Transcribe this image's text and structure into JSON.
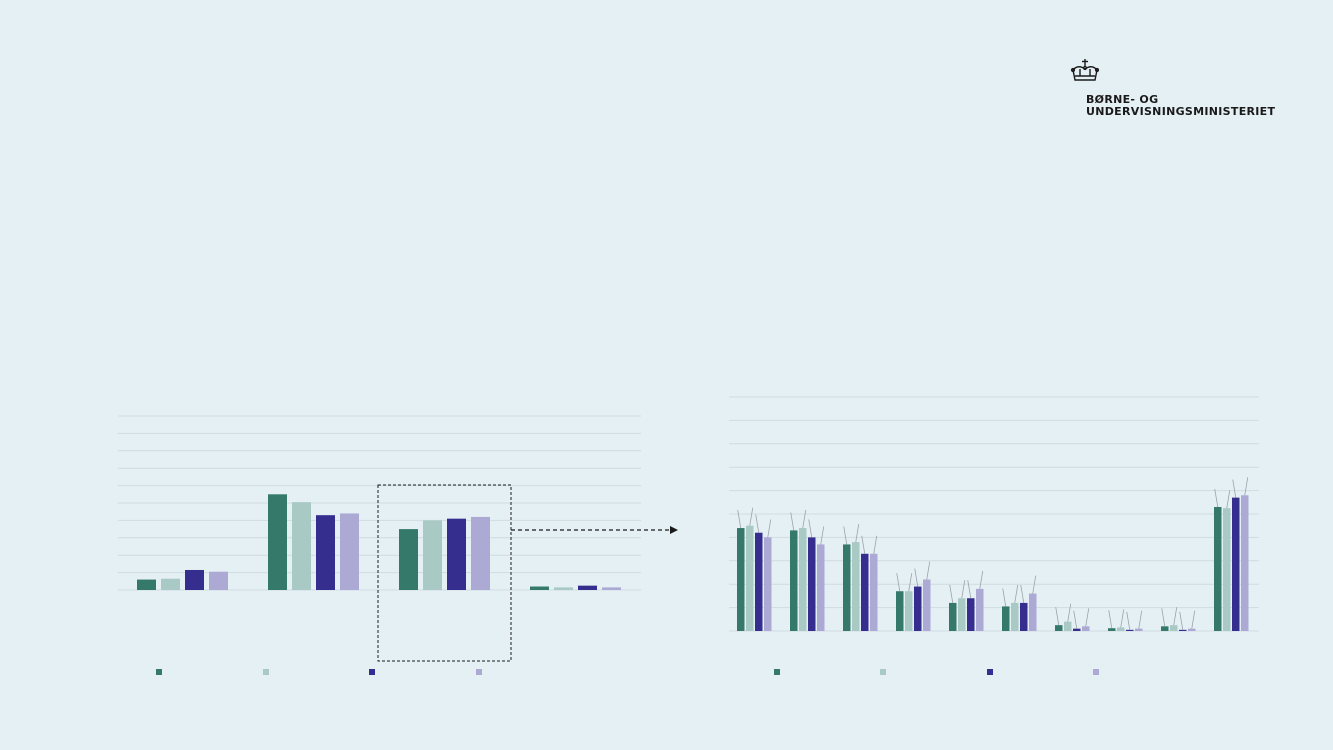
{
  "brand": {
    "line1": "BØRNE- OG",
    "line2": "UNDERVISNINGSMINISTERIET"
  },
  "colors": {
    "background": "#e5f0f5",
    "gridline": "#d0dbe1",
    "series": [
      "#35796b",
      "#a9c9c5",
      "#352e8f",
      "#aca9d5"
    ]
  },
  "chart_data": [
    {
      "type": "bar",
      "categories": [
        "",
        "",
        "",
        ""
      ],
      "series": [
        {
          "values": [
            0.6,
            5.5,
            3.5,
            0.2
          ]
        },
        {
          "values": [
            0.65,
            5.05,
            4.0,
            0.15
          ]
        },
        {
          "values": [
            1.15,
            4.3,
            4.1,
            0.25
          ]
        },
        {
          "values": [
            1.05,
            4.4,
            4.2,
            0.15
          ]
        }
      ],
      "ylim": [
        0,
        10
      ],
      "grid": true,
      "highlight_category": 2,
      "legend": "bottom"
    },
    {
      "type": "bar",
      "categories": [
        "",
        "",
        "",
        "",
        "",
        "",
        "",
        "",
        "",
        ""
      ],
      "series": [
        {
          "values": [
            4.4,
            4.3,
            3.7,
            1.7,
            1.2,
            1.05,
            0.25,
            0.12,
            0.2,
            5.3
          ]
        },
        {
          "values": [
            4.5,
            4.4,
            3.8,
            1.7,
            1.4,
            1.2,
            0.4,
            0.15,
            0.25,
            5.25
          ]
        },
        {
          "values": [
            4.2,
            4.0,
            3.3,
            1.9,
            1.4,
            1.2,
            0.1,
            0.05,
            0.05,
            5.7
          ]
        },
        {
          "values": [
            4.0,
            3.7,
            3.3,
            2.2,
            1.8,
            1.6,
            0.2,
            0.1,
            0.1,
            5.8
          ]
        }
      ],
      "ylim": [
        0,
        10
      ],
      "grid": true,
      "legend": "bottom"
    }
  ]
}
